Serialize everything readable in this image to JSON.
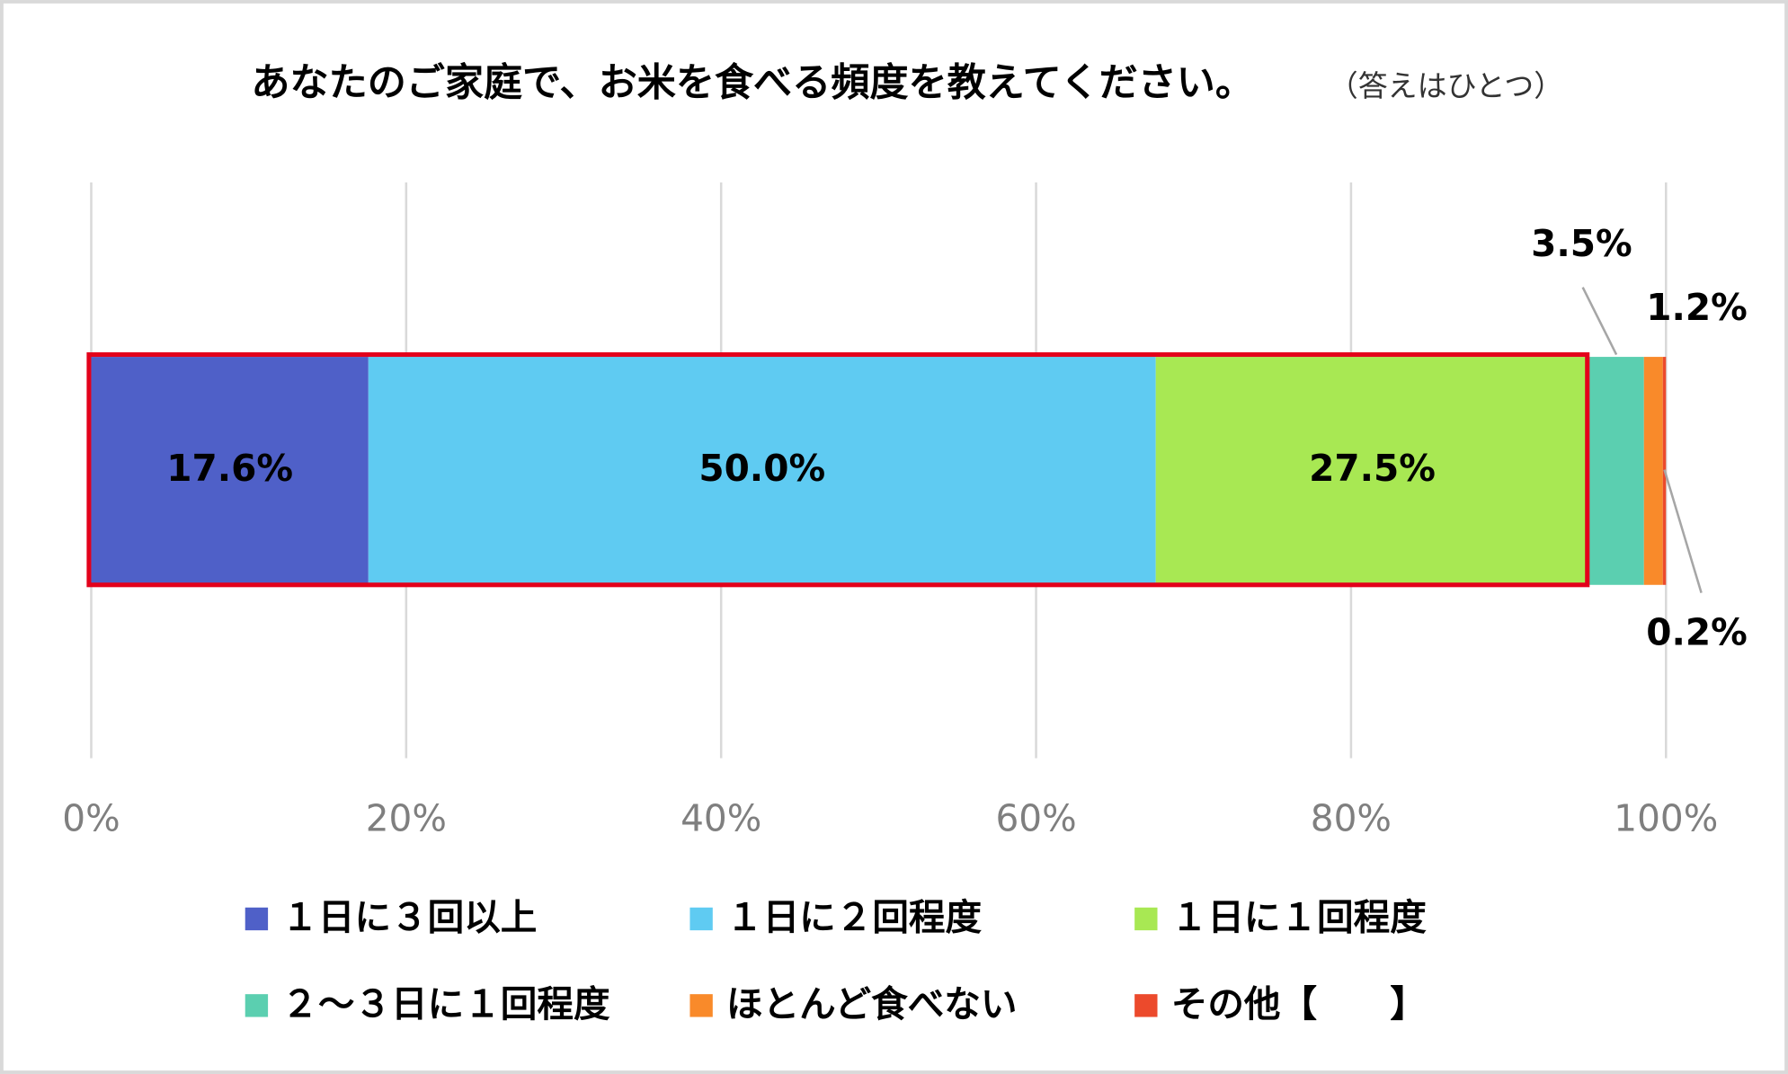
{
  "chart_data": {
    "type": "stacked-bar-horizontal",
    "title": "あなたのご家庭で、お米を食べる頻度を教えてください。",
    "subtitle": "（答えはひとつ）",
    "categories": [
      null
    ],
    "series": [
      {
        "name": "１日に３回以上",
        "color": "#4f60c8",
        "values": [
          17.6
        ],
        "value_labels": [
          "17.6%"
        ]
      },
      {
        "name": "１日に２回程度",
        "color": "#5fcbf2",
        "values": [
          50.0
        ],
        "value_labels": [
          "50.0%"
        ]
      },
      {
        "name": "１日に１回程度",
        "color": "#a8e853",
        "values": [
          27.5
        ],
        "value_labels": [
          "27.5%"
        ]
      },
      {
        "name": "２～３日に１回程度",
        "color": "#5bcfb0",
        "values": [
          3.5
        ],
        "value_labels": [
          "3.5%"
        ]
      },
      {
        "name": "ほとんど食べない",
        "color": "#f98a2a",
        "values": [
          1.2
        ],
        "value_labels": [
          "1.2%"
        ]
      },
      {
        "name": "その他【　　】",
        "color": "#ec4a2c",
        "values": [
          0.2
        ],
        "value_labels": [
          "0.2%"
        ]
      }
    ],
    "xlim": [
      0,
      100
    ],
    "xticks": [
      {
        "value": 0,
        "label": "0%"
      },
      {
        "value": 20,
        "label": "20%"
      },
      {
        "value": 40,
        "label": "40%"
      },
      {
        "value": 60,
        "label": "60%"
      },
      {
        "value": 80,
        "label": "80%"
      },
      {
        "value": 100,
        "label": "100%"
      }
    ],
    "grid": true
  }
}
